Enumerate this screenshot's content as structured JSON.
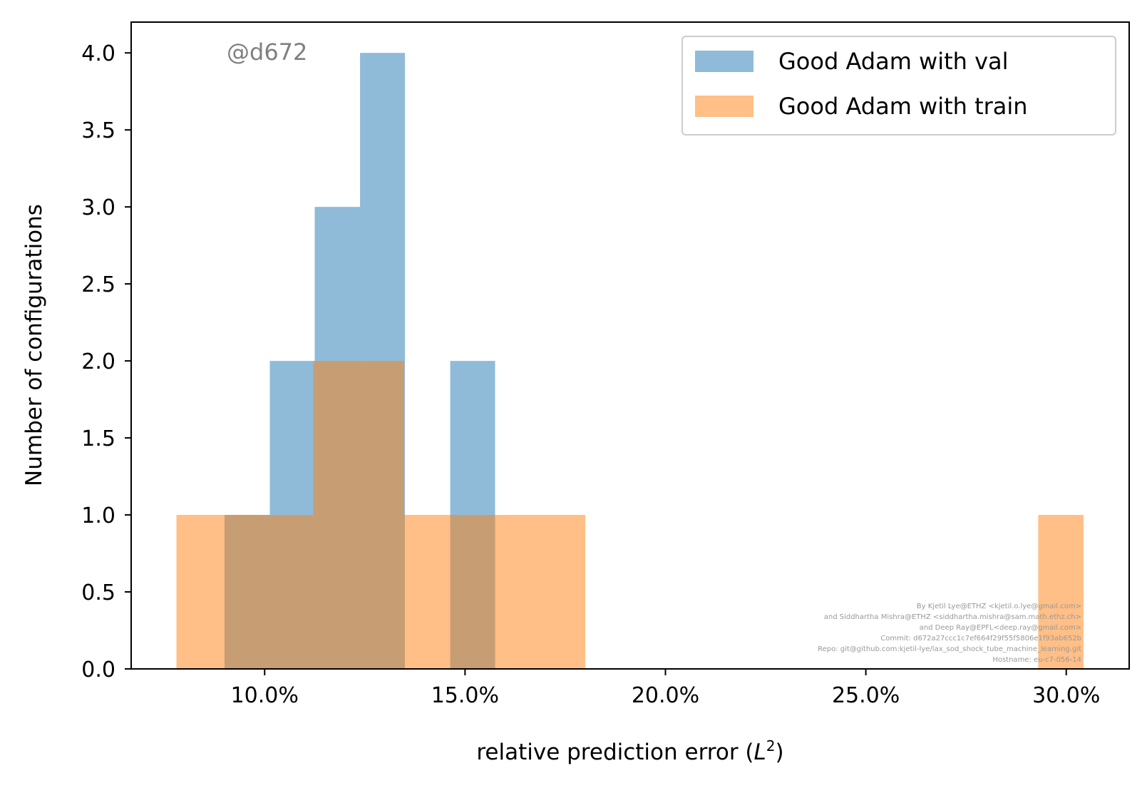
{
  "chart_data": {
    "type": "bar",
    "subtype": "histogram",
    "title": "",
    "xlabel": "relative prediction error ($L^2$)",
    "xlabel_parts": {
      "main": "relative prediction error (",
      "var": "L",
      "sup": "2",
      "close": ")"
    },
    "ylabel": "Number of configurations",
    "xlim": [
      0.0667,
      0.3157
    ],
    "ylim": [
      0,
      4.2
    ],
    "x_ticks": [
      {
        "value": 0.1,
        "label": "10.0%"
      },
      {
        "value": 0.15,
        "label": "15.0%"
      },
      {
        "value": 0.2,
        "label": "20.0%"
      },
      {
        "value": 0.25,
        "label": "25.0%"
      },
      {
        "value": 0.3,
        "label": "30.0%"
      }
    ],
    "y_ticks": [
      {
        "value": 0.0,
        "label": "0.0"
      },
      {
        "value": 0.5,
        "label": "0.5"
      },
      {
        "value": 1.0,
        "label": "1.0"
      },
      {
        "value": 1.5,
        "label": "1.5"
      },
      {
        "value": 2.0,
        "label": "2.0"
      },
      {
        "value": 2.5,
        "label": "2.5"
      },
      {
        "value": 3.0,
        "label": "3.0"
      },
      {
        "value": 3.5,
        "label": "3.5"
      },
      {
        "value": 4.0,
        "label": "4.0"
      }
    ],
    "grid": false,
    "legend_position": "top-right",
    "series": [
      {
        "name": "Good Adam with val",
        "color": "#1f77b4",
        "alpha": 0.5,
        "bins": [
          {
            "x0": 0.09,
            "x1": 0.1013,
            "count": 1
          },
          {
            "x0": 0.1013,
            "x1": 0.1125,
            "count": 2
          },
          {
            "x0": 0.1125,
            "x1": 0.1238,
            "count": 3
          },
          {
            "x0": 0.1238,
            "x1": 0.135,
            "count": 4
          },
          {
            "x0": 0.1463,
            "x1": 0.1575,
            "count": 2
          }
        ]
      },
      {
        "name": "Good Adam with train",
        "color": "#ff7f0e",
        "alpha": 0.5,
        "bins": [
          {
            "x0": 0.078,
            "x1": 0.0893,
            "count": 1
          },
          {
            "x0": 0.0893,
            "x1": 0.1121,
            "count": 1
          },
          {
            "x0": 0.1121,
            "x1": 0.1348,
            "count": 2
          },
          {
            "x0": 0.1348,
            "x1": 0.1575,
            "count": 1
          },
          {
            "x0": 0.1575,
            "x1": 0.18,
            "count": 1
          },
          {
            "x0": 0.293,
            "x1": 0.3043,
            "count": 1
          }
        ]
      }
    ],
    "annotations": {
      "watermark": "@d672",
      "credits": [
        "By Kjetil Lye@ETHZ <kjetil.o.lye@gmail.com>",
        "and Siddhartha Mishra@ETHZ <siddhartha.mishra@sam.math.ethz.ch>",
        "and Deep Ray@EPFL<deep.ray@gmail.com>",
        "Commit: d672a27ccc1c7ef664f29f55f5806e1f93ab652b",
        "Repo: git@github.com:kjetil-lye/lax_sod_shock_tube_machine_learning.git",
        "Hostname: eu-c7-056-14"
      ]
    }
  }
}
